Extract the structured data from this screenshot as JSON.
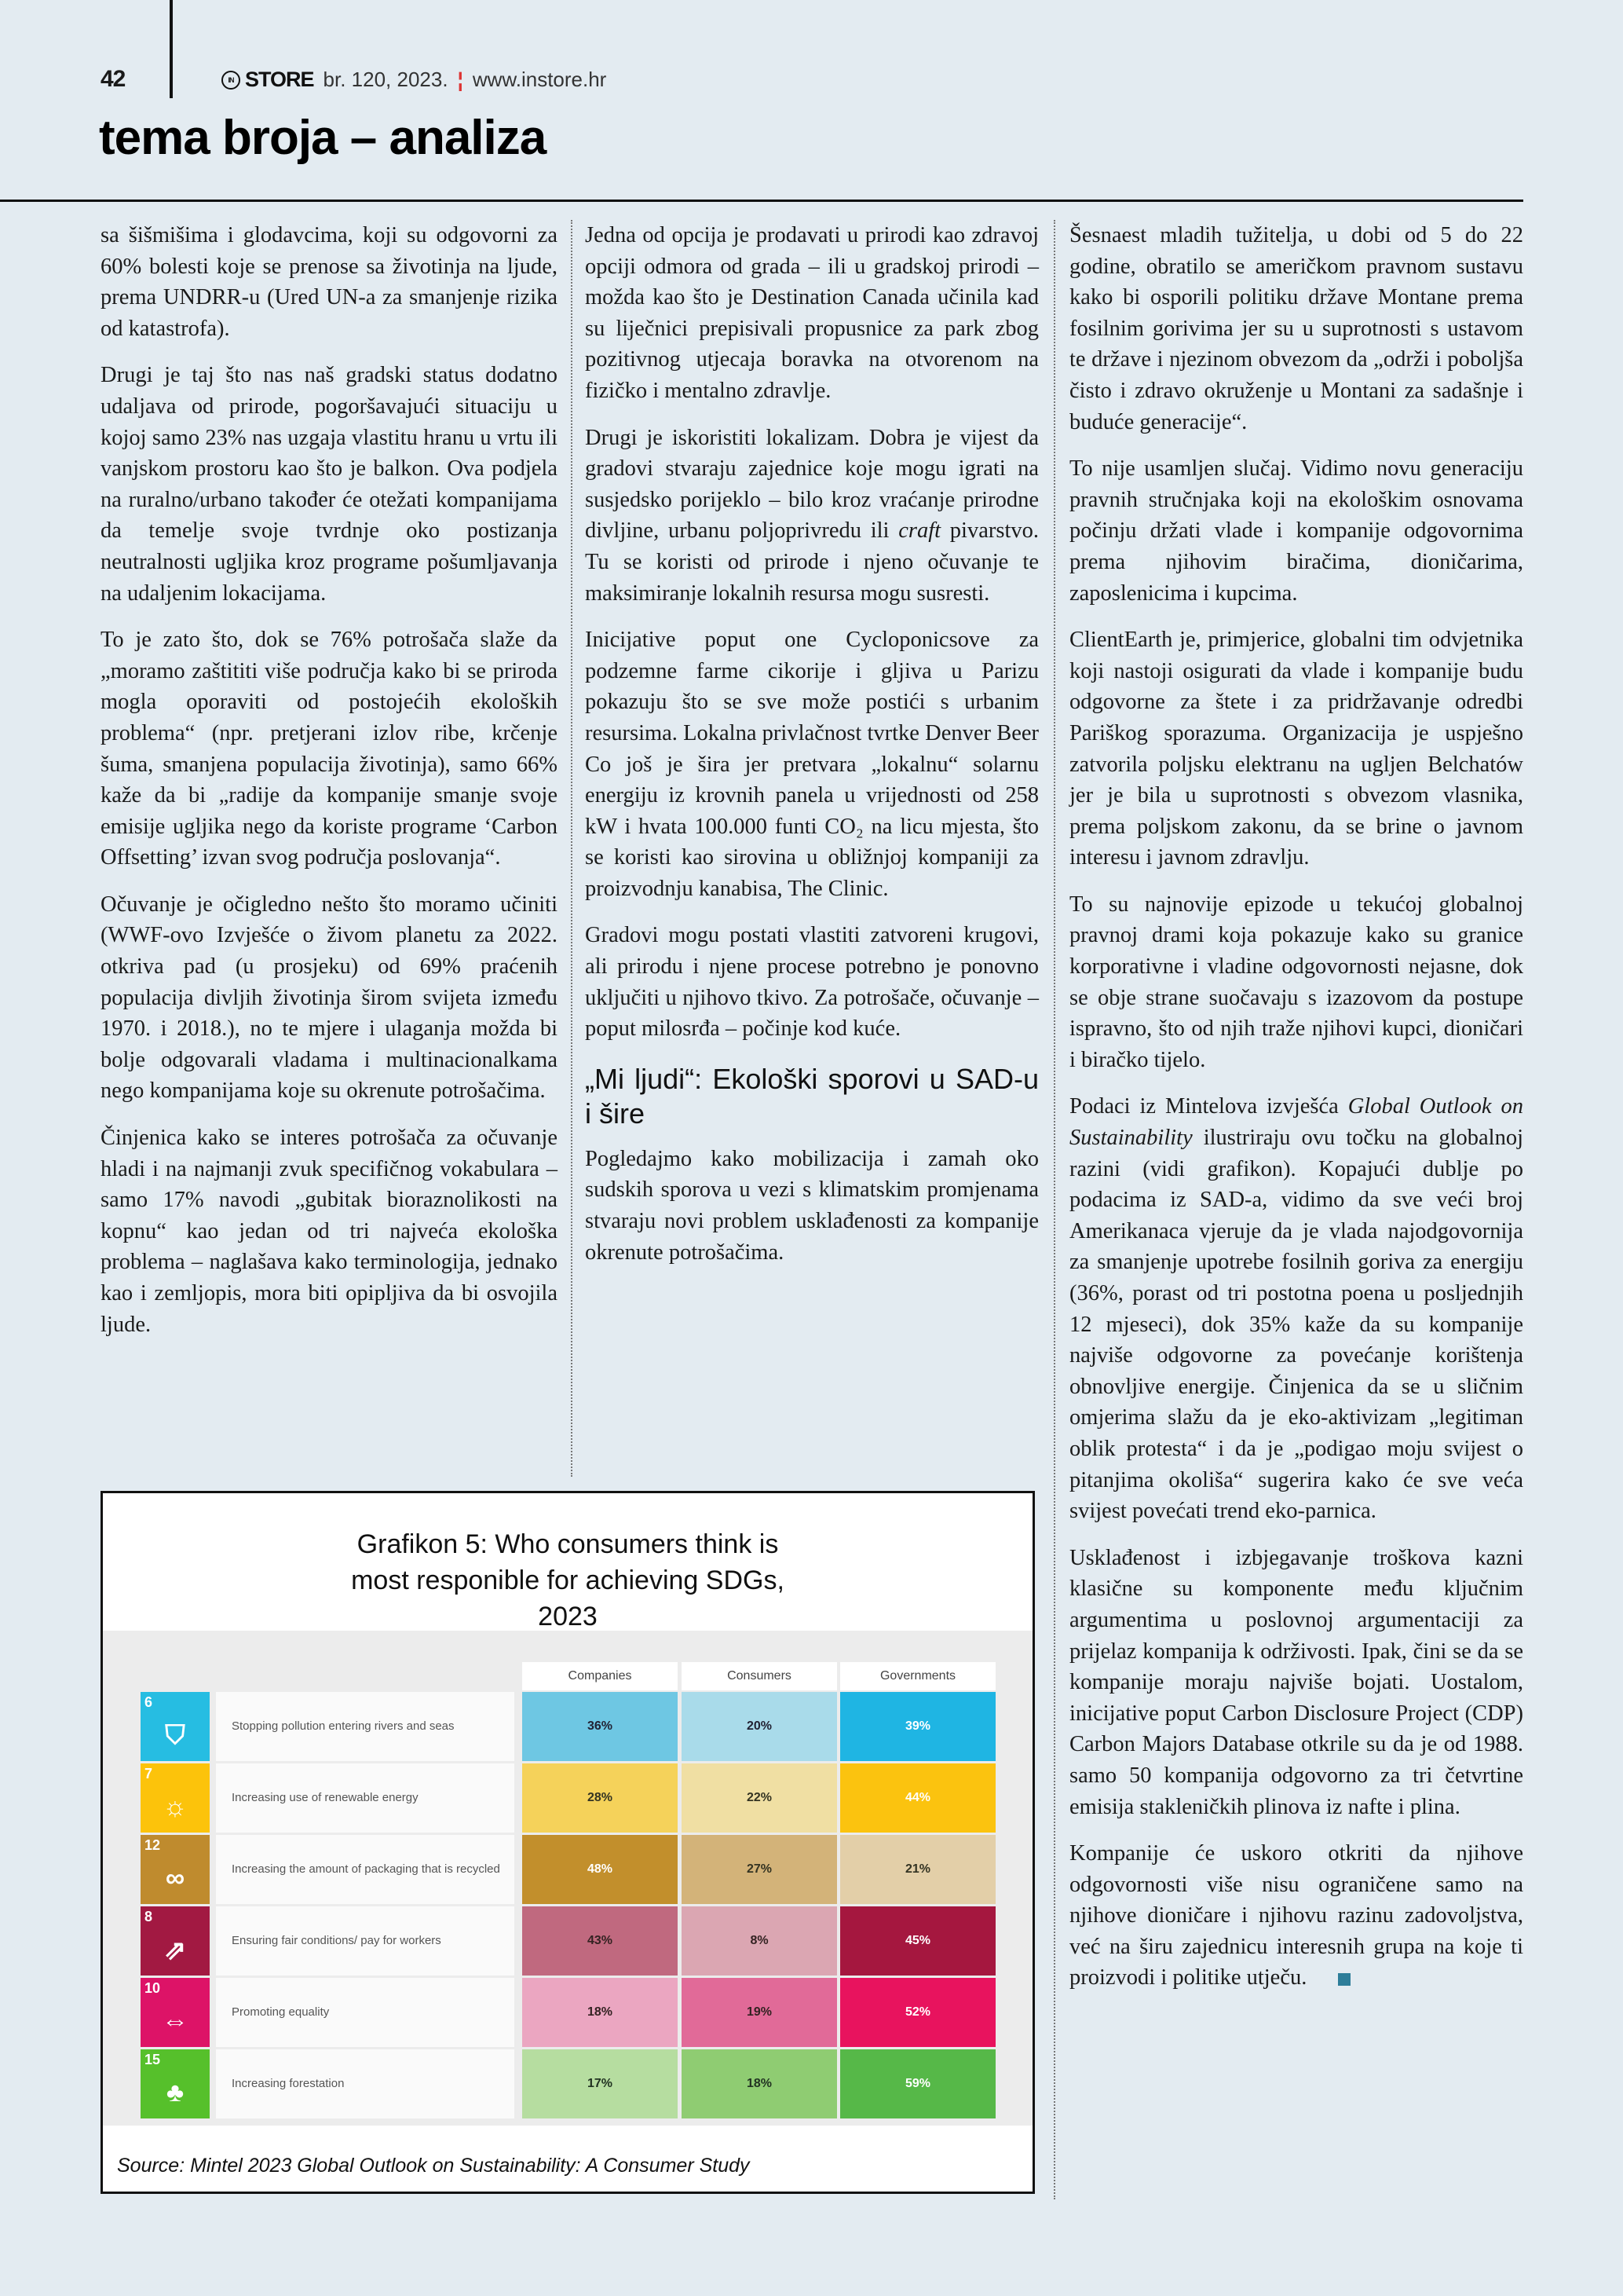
{
  "header": {
    "page_number": "42",
    "logo_mark": "IN",
    "logo_text": "STORE",
    "issue": "br. 120, 2023.",
    "separator": "¦",
    "website": "www.instore.hr",
    "section_title": "tema broja – analiza"
  },
  "column1": [
    "sa šišmišima i glodavcima, koji su odgovorni za 60% bolesti koje se prenose sa životinja na ljude, prema UNDRR-u (Ured UN-a za smanjenje rizika od katastrofa).",
    "Drugi je taj što nas naš gradski status dodatno udaljava od prirode, pogoršavajući situaciju u kojoj samo 23% nas uzgaja vlastitu hranu u vrtu ili vanjskom prostoru kao što je balkon. Ova podjela na ruralno/urbano također će otežati kompanijama da temelje svoje tvrdnje oko postizanja neutralnosti ugljika kroz programe pošumljavanja na udaljenim lokacijama.",
    "To je zato što, dok se 76% potrošača slaže da „moramo zaštititi više područja kako bi se priroda mogla oporaviti od postojećih ekoloških problema“ (npr. pretjerani izlov ribe, krčenje šuma, smanjena populacija životinja), samo 66% kaže da bi „radije da kompanije smanje svoje emisije ugljika nego da koriste programe ‘Carbon Offsetting’ izvan svog područja poslovanja“.",
    "Očuvanje je očigledno nešto što moramo učiniti (WWF-ovo Izvješće o živom planetu za 2022. otkriva pad (u prosjeku) od 69% praćenih populacija divljih životinja širom svijeta između 1970. i 2018.), no te mjere i ulaganja možda bi bolje odgovarali vladama i multinacionalkama nego kompanijama koje su okrenute potrošačima.",
    "Činjenica kako se interes potrošača za očuvanje hladi i na najmanji zvuk specifičnog vokabulara – samo 17% navodi „gubitak bioraznolikosti na kopnu“ kao jedan od tri najveća ekološka problema – naglašava kako terminologija, jednako kao i zemljopis, mora biti opipljiva da bi osvojila ljude."
  ],
  "column2": {
    "p1": "Jedna od opcija je prodavati u prirodi kao zdravoj opciji odmora od grada – ili u gradskoj prirodi – možda kao što je Destination Canada učinila kad su liječnici prepisivali propusnice za park zbog pozitivnog utjecaja boravka na otvorenom na fizičko i mentalno zdravlje.",
    "p2_a": "Drugi je iskoristiti lokalizam. Dobra je vijest da gradovi stvaraju zajednice koje mogu igrati na susjedsko porijeklo – bilo kroz vraćanje prirodne divljine, urbanu poljoprivredu ili ",
    "p2_italic": "craft",
    "p2_b": " pivarstvo. Tu se koristi od prirode i njeno očuvanje te maksimiranje lokalnih resursa mogu susresti.",
    "p3": "Inicijative poput one Cycloponicsove za podzemne farme cikorije i gljiva u Parizu pokazuju što se sve može postići s urbanim resursima. Lokalna privlačnost tvrtke Denver Beer Co još je šira jer pretvara „lokalnu“ solarnu energiju iz krovnih panela u vrijednosti od 258 kW i hvata 100.000 funti CO₂ na licu mjesta, što se koristi kao sirovina u obližnjoj kompaniji za proizvodnju kanabisa, The Clinic.",
    "p4": "Gradovi mogu postati vlastiti zatvoreni krugovi, ali prirodu i njene procese potrebno je ponovno uključiti u njihovo tkivo. Za potrošače, očuvanje – poput milosrđa – počinje kod kuće.",
    "heading": "„Mi ljudi“: Ekološki sporovi u SAD-u i šire",
    "p5": "Pogledajmo kako mobilizacija i zamah oko sudskih sporova u vezi s klimatskim promjenama stvaraju novi problem usklađenosti za kompanije okrenute potrošačima."
  },
  "column3": {
    "p1": "Šesnaest mladih tužitelja, u dobi od 5 do 22 godine, obratilo se američkom pravnom sustavu kako bi osporili politiku države Montane prema fosilnim gorivima jer su u suprotnosti s ustavom te države i njezinom obvezom da „održi i poboljša čisto i zdravo okruženje u Montani za sadašnje i buduće generacije“.",
    "p2": "To nije usamljen slučaj. Vidimo novu generaciju pravnih stručnjaka koji na ekološkim osnovama počinju držati vlade i kompanije odgovornima prema njihovim biračima, dioničarima, zaposlenicima i kupcima.",
    "p3": "ClientEarth je, primjerice, globalni tim odvjetnika koji nastoji osigurati da vlade i kompanije budu odgovorne za štete i za pridržavanje odredbi Pariškog sporazuma. Organizacija je uspješno zatvorila poljsku elektranu na ugljen Belchatów jer je bila u suprotnosti s obvezom vlasnika, prema poljskom zakonu, da se brine o javnom interesu i javnom zdravlju.",
    "p4": "To su najnovije epizode u tekućoj globalnoj pravnoj drami koja pokazuje kako su granice korporativne i vladine odgovornosti nejasne, dok se obje strane suočavaju s izazovom da postupe ispravno, što od njih traže njihovi kupci, dioničari i biračko tijelo.",
    "p5_a": "Podaci iz Mintelova izvješća ",
    "p5_italic": "Global Outlook on Sustainability",
    "p5_b": " ilustriraju ovu točku na globalnoj razini (vidi grafikon). Kopajući dublje po podacima iz SAD-a, vidimo da sve veći broj Amerikanaca vjeruje da je vlada najodgovornija za smanjenje upotrebe fosilnih goriva za energiju (36%, porast od tri postotna poena u posljednjih 12 mjeseci), dok 35% kaže da su kompanije najviše odgovorne za povećanje korištenja obnovljive energije. Činjenica da se u sličnim omjerima slažu da je eko-aktivizam „legitiman oblik protesta“ i da je „podigao moju svijest o pitanjima okoliša“ sugerira kako će sve veća svijest povećati trend eko-parnica.",
    "p6": "Usklađenost i izbjegavanje troškova kazni klasične su komponente među ključnim argumentima u poslovnoj argumentaciji za prijelaz kompanija k održivosti. Ipak, čini se da se kompanije moraju najviše bojati. Uostalom, inicijative poput Carbon Disclosure Project (CDP) Carbon Majors Database otkrile su da je od 1988. samo 50 kompanija odgovorno za tri četvrtine emisija stakleničkih plinova iz nafte i plina.",
    "p7": "Kompanije će uskoro otkriti da njihove odgovornosti više nisu ograničene samo na njihove dioničare i njihovu razinu zadovoljstva, već na širu zajednicu interesnih grupa na koje ti proizvodi i politike utječu."
  },
  "chart_data": {
    "type": "heatmap",
    "title": "Grafikon 5: Who consumers think is most responible for achieving SDGs, 2023",
    "columns": [
      "Companies",
      "Consumers",
      "Governments"
    ],
    "rows": [
      {
        "sdg": "6",
        "label": "Stopping pollution entering rivers and seas",
        "values": [
          36,
          20,
          39
        ],
        "icon_color": "#26bde2",
        "colors": [
          "#6ec7e3",
          "#a9dbea",
          "#1fb5e3"
        ],
        "text_colors": [
          "#223",
          "#223",
          "#fff"
        ]
      },
      {
        "sdg": "7",
        "label": "Increasing use of renewable energy",
        "values": [
          28,
          22,
          44
        ],
        "icon_color": "#fcc30b",
        "colors": [
          "#f5d25a",
          "#f0dfa3",
          "#fbc30f"
        ],
        "text_colors": [
          "#332",
          "#332",
          "#fff"
        ]
      },
      {
        "sdg": "12",
        "label": "Increasing the amount of packaging that is recycled",
        "values": [
          48,
          27,
          21
        ],
        "icon_color": "#bf8b2e",
        "colors": [
          "#c28f2c",
          "#d3b379",
          "#e3cfa8"
        ],
        "text_colors": [
          "#fff",
          "#332",
          "#332"
        ]
      },
      {
        "sdg": "8",
        "label": "Ensuring fair conditions/ pay for workers",
        "values": [
          43,
          8,
          45
        ],
        "icon_color": "#a21942",
        "colors": [
          "#c0697f",
          "#dba6b2",
          "#a5173f"
        ],
        "text_colors": [
          "#322",
          "#322",
          "#fff"
        ]
      },
      {
        "sdg": "10",
        "label": "Promoting equality",
        "values": [
          18,
          19,
          52
        ],
        "icon_color": "#dd1367",
        "colors": [
          "#eba6c1",
          "#e16a98",
          "#e8135e"
        ],
        "text_colors": [
          "#322",
          "#322",
          "#fff"
        ]
      },
      {
        "sdg": "15",
        "label": "Increasing forestation",
        "values": [
          17,
          18,
          59
        ],
        "icon_color": "#56c02b",
        "colors": [
          "#b6dda0",
          "#8fcc72",
          "#56b848"
        ],
        "text_colors": [
          "#232",
          "#232",
          "#fff"
        ]
      }
    ],
    "value_suffix": "%",
    "source": "Source: Mintel 2023 Global Outlook on Sustainability: A Consumer Study"
  }
}
